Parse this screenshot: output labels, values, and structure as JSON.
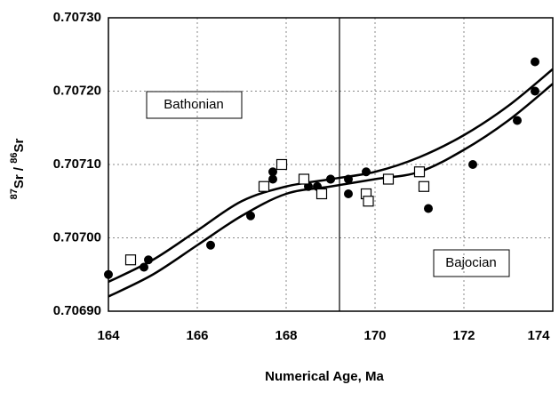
{
  "chart_data": {
    "type": "scatter",
    "x_label": "Numerical Age, Ma",
    "y_label": [
      "87",
      "Sr / ",
      "86",
      "Sr"
    ],
    "annotations": [
      "Bathonian",
      "Bajocian"
    ],
    "xlim": [
      164,
      174
    ],
    "xticks": [
      164,
      166,
      168,
      170,
      172,
      174
    ],
    "ylim": [
      0.7069,
      0.7073
    ],
    "yticks": [
      {
        "value": 0.7069,
        "label": "0.70690"
      },
      {
        "value": 0.707,
        "label": "0.70700"
      },
      {
        "value": 0.7071,
        "label": "0.70710"
      },
      {
        "value": 0.7072,
        "label": "0.70720"
      },
      {
        "value": 0.7073,
        "label": "0.70730"
      }
    ],
    "grid": true,
    "vline": 169.2,
    "series": [
      {
        "marker": "circle",
        "color": "#000",
        "x": [
          164.0,
          164.8,
          164.9,
          166.3,
          167.2,
          167.7,
          167.7,
          168.5,
          168.7,
          169.0,
          169.0,
          169.4,
          169.4,
          169.8,
          171.2,
          172.2,
          173.2,
          173.6,
          173.6
        ],
        "values": [
          0.70695,
          0.70696,
          0.70697,
          0.70699,
          0.70703,
          0.70708,
          0.70709,
          0.70707,
          0.70707,
          0.70708,
          0.70708,
          0.70706,
          0.70708,
          0.70709,
          0.70704,
          0.7071,
          0.70716,
          0.70724,
          0.7072
        ]
      },
      {
        "marker": "square",
        "color": "#000",
        "x": [
          164.5,
          167.5,
          167.9,
          168.4,
          168.8,
          169.8,
          169.85,
          170.3,
          171.0,
          171.1
        ],
        "values": [
          0.70697,
          0.70707,
          0.7071,
          0.70708,
          0.70706,
          0.70706,
          0.70705,
          0.70708,
          0.70709,
          0.70707
        ]
      }
    ],
    "curves": [
      {
        "x": [
          164,
          165,
          166,
          167,
          168,
          169,
          170,
          171,
          172,
          173,
          174
        ],
        "values": [
          0.70694,
          0.70697,
          0.70701,
          0.70705,
          0.70707,
          0.70708,
          0.70709,
          0.70711,
          0.70714,
          0.70718,
          0.70723
        ]
      },
      {
        "x": [
          164,
          165,
          166,
          167,
          168,
          169,
          170,
          171,
          172,
          173,
          174
        ],
        "values": [
          0.70692,
          0.70695,
          0.70699,
          0.70703,
          0.70706,
          0.70707,
          0.70708,
          0.70709,
          0.70712,
          0.70716,
          0.70721
        ]
      }
    ]
  }
}
